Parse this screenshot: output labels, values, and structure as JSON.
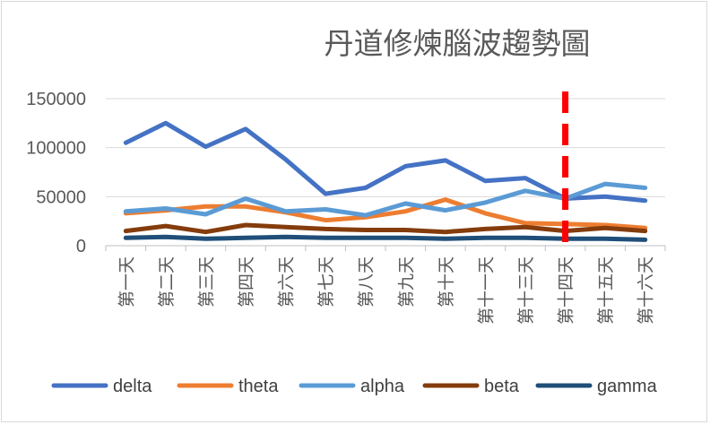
{
  "chart_data": {
    "type": "line",
    "title": "丹道修煉腦波趨勢圖",
    "xlabel": "",
    "ylabel": "",
    "categories": [
      "第一天",
      "第二天",
      "第三天",
      "第四天",
      "第六天",
      "第七天",
      "第八天",
      "第九天",
      "第十天",
      "第十一天",
      "第十三天",
      "第十四天",
      "第十五天",
      "第十六天"
    ],
    "ylim": [
      0,
      150000
    ],
    "yticks": [
      "0",
      "50000",
      "100000",
      "150000"
    ],
    "grid": true,
    "legend_position": "bottom",
    "series": [
      {
        "name": "delta",
        "color": "#4472C4",
        "values": [
          105000,
          125000,
          101000,
          119000,
          88000,
          53000,
          59000,
          81000,
          87000,
          66000,
          69000,
          48000,
          50000,
          46000
        ]
      },
      {
        "name": "theta",
        "color": "#ED7D31",
        "values": [
          33000,
          36000,
          40000,
          40000,
          34000,
          26000,
          29000,
          35000,
          47000,
          33000,
          23000,
          22000,
          21000,
          18000
        ]
      },
      {
        "name": "alpha",
        "color": "#5B9BD5",
        "values": [
          35000,
          38000,
          32000,
          48000,
          35000,
          37000,
          31000,
          43000,
          36000,
          44000,
          56000,
          48000,
          63000,
          59000
        ]
      },
      {
        "name": "beta",
        "color": "#843C0C",
        "values": [
          15000,
          20000,
          14000,
          21000,
          19000,
          17000,
          16000,
          16000,
          14000,
          17000,
          19000,
          15000,
          18000,
          15000
        ]
      },
      {
        "name": "gamma",
        "color": "#1F4E79",
        "values": [
          8000,
          9000,
          7000,
          8000,
          9000,
          8000,
          8000,
          8000,
          7000,
          8000,
          8000,
          7000,
          7000,
          6000
        ]
      }
    ],
    "annotations": [
      {
        "type": "vertical-dashed-line",
        "category": "第十四天",
        "color": "#FF0000"
      }
    ]
  }
}
